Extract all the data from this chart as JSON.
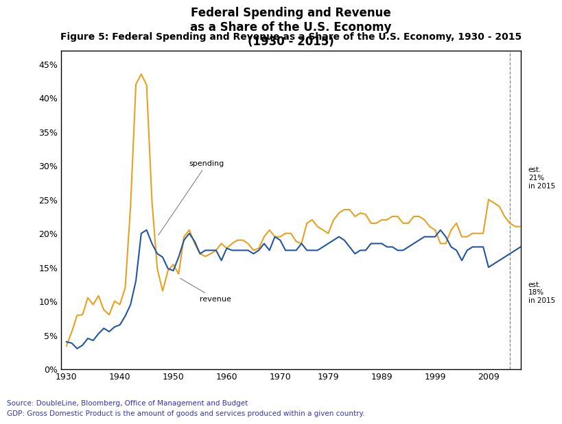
{
  "title_figure": "Figure 5: Federal Spending and Revenue as a Share of the U.S. Economy, 1930 - 2015",
  "title_chart": "Federal Spending and Revenue\nas a Share of the U.S. Economy\n(1930 - 2015)",
  "source_line1": "Source: DoubleLine, Bloomberg, Office of Management and Budget",
  "source_line2": "GDP: Gross Domestic Product is the amount of goods and services produced within a given country.",
  "spending_color": "#E8A020",
  "revenue_color": "#2255A0",
  "spending_label": "spending",
  "revenue_label": "revenue",
  "est_spending": "est.\n21%\nin 2015",
  "est_revenue": "est.\n18%\nin 2015",
  "years": [
    1930,
    1931,
    1932,
    1933,
    1934,
    1935,
    1936,
    1937,
    1938,
    1939,
    1940,
    1941,
    1942,
    1943,
    1944,
    1945,
    1946,
    1947,
    1948,
    1949,
    1950,
    1951,
    1952,
    1953,
    1954,
    1955,
    1956,
    1957,
    1958,
    1959,
    1960,
    1961,
    1962,
    1963,
    1964,
    1965,
    1966,
    1967,
    1968,
    1969,
    1970,
    1971,
    1972,
    1973,
    1974,
    1975,
    1976,
    1977,
    1978,
    1979,
    1980,
    1981,
    1982,
    1983,
    1984,
    1985,
    1986,
    1987,
    1988,
    1989,
    1990,
    1991,
    1992,
    1993,
    1994,
    1995,
    1996,
    1997,
    1998,
    1999,
    2000,
    2001,
    2002,
    2003,
    2004,
    2005,
    2006,
    2007,
    2008,
    2009,
    2010,
    2011,
    2012,
    2013,
    2014,
    2015
  ],
  "spending": [
    3.4,
    5.5,
    7.9,
    8.0,
    10.5,
    9.5,
    10.8,
    8.7,
    8.0,
    10.0,
    9.5,
    12.0,
    24.0,
    42.0,
    43.5,
    41.9,
    24.8,
    14.8,
    11.5,
    14.5,
    15.4,
    14.0,
    19.5,
    20.5,
    18.5,
    17.0,
    16.6,
    17.0,
    17.5,
    18.5,
    17.8,
    18.5,
    19.0,
    19.0,
    18.5,
    17.5,
    17.8,
    19.5,
    20.5,
    19.5,
    19.5,
    20.0,
    20.0,
    18.8,
    18.5,
    21.5,
    22.0,
    21.0,
    20.5,
    20.0,
    22.0,
    23.0,
    23.5,
    23.5,
    22.5,
    23.0,
    22.8,
    21.5,
    21.5,
    22.0,
    22.0,
    22.5,
    22.5,
    21.5,
    21.5,
    22.5,
    22.5,
    22.0,
    21.0,
    20.5,
    18.5,
    18.5,
    20.5,
    21.5,
    19.5,
    19.5,
    20.0,
    20.0,
    20.0,
    25.0,
    24.5,
    24.0,
    22.5,
    21.5,
    21.0,
    21.0
  ],
  "revenue": [
    4.0,
    3.8,
    3.0,
    3.5,
    4.5,
    4.2,
    5.2,
    6.0,
    5.5,
    6.2,
    6.5,
    7.8,
    9.5,
    13.0,
    20.0,
    20.5,
    18.5,
    17.0,
    16.5,
    14.8,
    14.5,
    16.5,
    19.0,
    20.0,
    18.8,
    17.0,
    17.5,
    17.5,
    17.5,
    16.0,
    17.8,
    17.5,
    17.5,
    17.5,
    17.5,
    17.0,
    17.5,
    18.5,
    17.5,
    19.5,
    19.0,
    17.5,
    17.5,
    17.5,
    18.5,
    17.5,
    17.5,
    17.5,
    18.0,
    18.5,
    19.0,
    19.5,
    19.0,
    18.0,
    17.0,
    17.5,
    17.5,
    18.5,
    18.5,
    18.5,
    18.0,
    18.0,
    17.5,
    17.5,
    18.0,
    18.5,
    19.0,
    19.5,
    19.5,
    19.5,
    20.5,
    19.5,
    18.0,
    17.5,
    16.0,
    17.5,
    18.0,
    18.0,
    18.0,
    15.0,
    15.5,
    16.0,
    16.5,
    17.0,
    17.5,
    18.0
  ],
  "xlim": [
    1929,
    2015
  ],
  "ylim": [
    0,
    47
  ],
  "xticks": [
    1930,
    1940,
    1950,
    1960,
    1970,
    1979,
    1989,
    1999,
    2009
  ],
  "yticks": [
    0,
    5,
    10,
    15,
    20,
    25,
    30,
    35,
    40,
    45
  ],
  "ytick_labels": [
    "0%",
    "5%",
    "10%",
    "15%",
    "20%",
    "25%",
    "30%",
    "35%",
    "40%",
    "45%"
  ],
  "vline_x": 2013
}
